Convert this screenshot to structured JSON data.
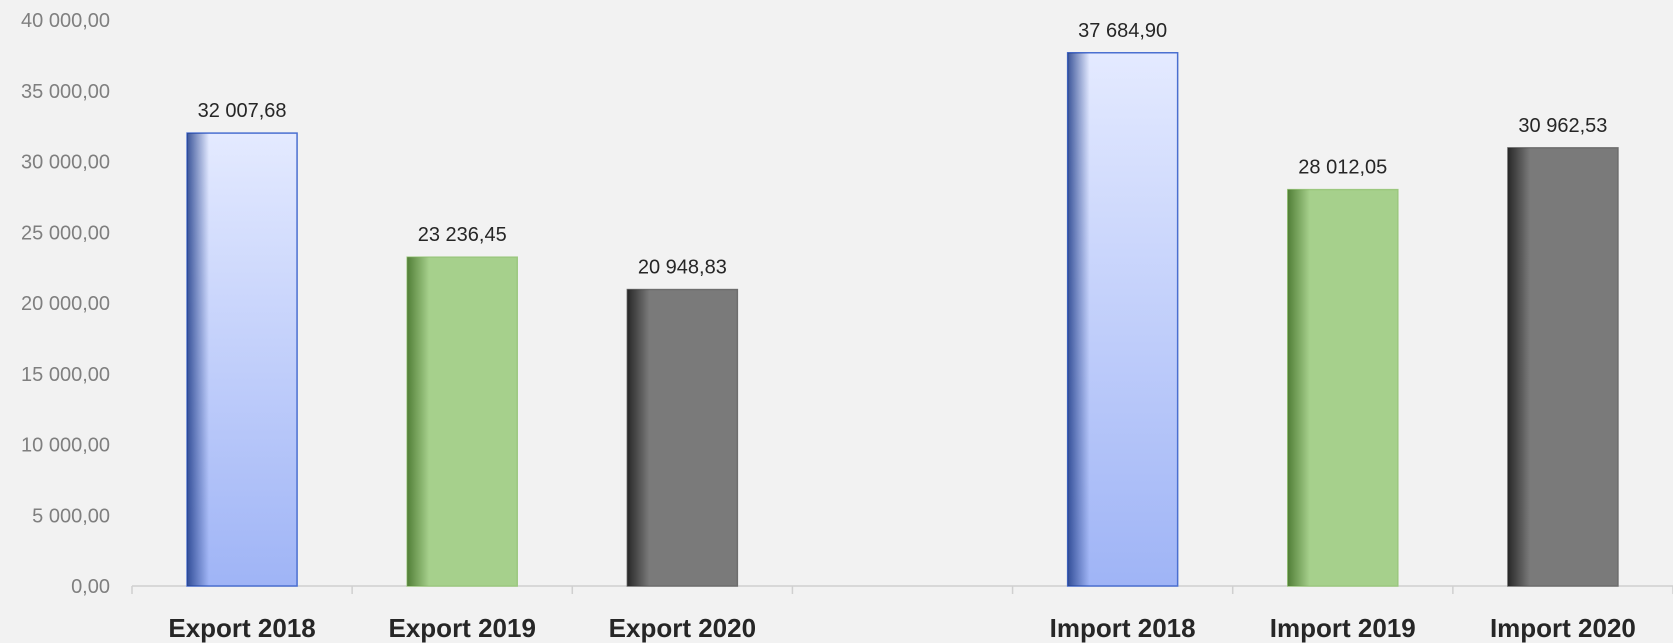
{
  "chart_data": {
    "type": "bar",
    "title": "",
    "xlabel": "",
    "ylabel": "",
    "ylim": [
      0,
      40000
    ],
    "yticks": [
      0,
      5000,
      10000,
      15000,
      20000,
      25000,
      30000,
      35000,
      40000
    ],
    "ytick_labels": [
      "0,00",
      "5 000,00",
      "10 000,00",
      "15 000,00",
      "20 000,00",
      "25 000,00",
      "30 000,00",
      "35 000,00",
      "40 000,00"
    ],
    "grid": false,
    "legend": "none",
    "categories": [
      "Export 2018",
      "Export 2019",
      "Export 2020",
      "",
      "Import 2018",
      "Import 2019",
      "Import 2020"
    ],
    "values": [
      32007.68,
      23236.45,
      20948.83,
      null,
      37684.9,
      28012.05,
      30962.53
    ],
    "data_labels": [
      "32 007,68",
      "23 236,45",
      "20 948,83",
      "",
      "37 684,90",
      "28 012,05",
      "30 962,53"
    ],
    "bar_colors": [
      "blue",
      "green",
      "gray",
      "",
      "blue",
      "green",
      "gray"
    ],
    "colors": {
      "blue": "#a4b9f7",
      "green": "#a6d08c",
      "gray": "#7a7a7a",
      "background": "#f2f2f2"
    }
  }
}
